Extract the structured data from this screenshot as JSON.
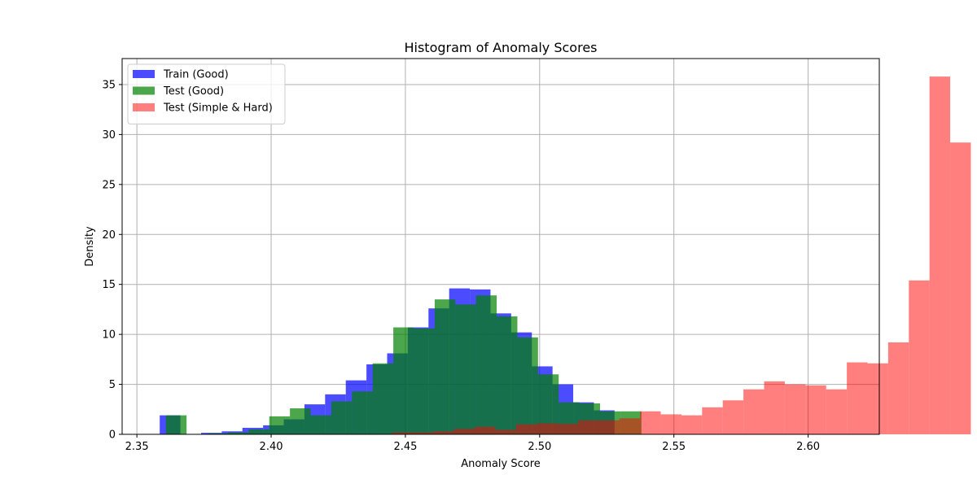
{
  "chart_data": {
    "type": "bar",
    "title": "Histogram of Anomaly Scores",
    "xlabel": "Anomaly Score",
    "ylabel": "Density",
    "xlim": [
      2.3445,
      2.6265
    ],
    "ylim": [
      0,
      37.6
    ],
    "xticks": [
      2.35,
      2.4,
      2.45,
      2.5,
      2.55,
      2.6
    ],
    "xtick_labels": [
      "2.35",
      "2.40",
      "2.45",
      "2.50",
      "2.55",
      "2.60"
    ],
    "yticks": [
      0,
      5,
      10,
      15,
      20,
      25,
      30,
      35
    ],
    "ytick_labels": [
      "0",
      "5",
      "10",
      "15",
      "20",
      "25",
      "30",
      "35"
    ],
    "grid": true,
    "legend_position": "upper left",
    "series": [
      {
        "name": "Train (Good)",
        "color": "#0000ff",
        "alpha": 0.7,
        "bin_start": 2.3585,
        "bin_width": 0.0077,
        "values": [
          1.9,
          0.0,
          0.15,
          0.3,
          0.65,
          0.9,
          1.5,
          3.0,
          4.0,
          5.4,
          7.0,
          8.1,
          10.7,
          12.6,
          14.6,
          14.5,
          12.1,
          10.2,
          6.8,
          5.0,
          3.2,
          2.4
        ]
      },
      {
        "name": "Test (Good)",
        "color": "#008000",
        "alpha": 0.7,
        "bin_start": 2.3608,
        "bin_width": 0.0077,
        "values": [
          1.9,
          0.0,
          0.1,
          0.2,
          0.5,
          1.8,
          2.6,
          1.9,
          3.3,
          4.3,
          7.1,
          10.7,
          10.6,
          13.5,
          13.0,
          13.9,
          11.8,
          9.7,
          6.0,
          3.2,
          3.1,
          2.3,
          2.3
        ]
      },
      {
        "name": "Test (Simple & Hard)",
        "color": "#ff0000",
        "alpha": 0.5,
        "bin_start": 2.445,
        "bin_width": 0.0077,
        "values": [
          0.2,
          0.2,
          0.3,
          0.55,
          0.75,
          0.45,
          1.0,
          1.1,
          1.05,
          1.4,
          1.4,
          1.6,
          2.3,
          2.0,
          1.9,
          2.7,
          3.4,
          4.5,
          5.3,
          5.0,
          4.9,
          4.5,
          7.2,
          7.1,
          9.2,
          15.4,
          35.8,
          29.2
        ]
      }
    ]
  }
}
